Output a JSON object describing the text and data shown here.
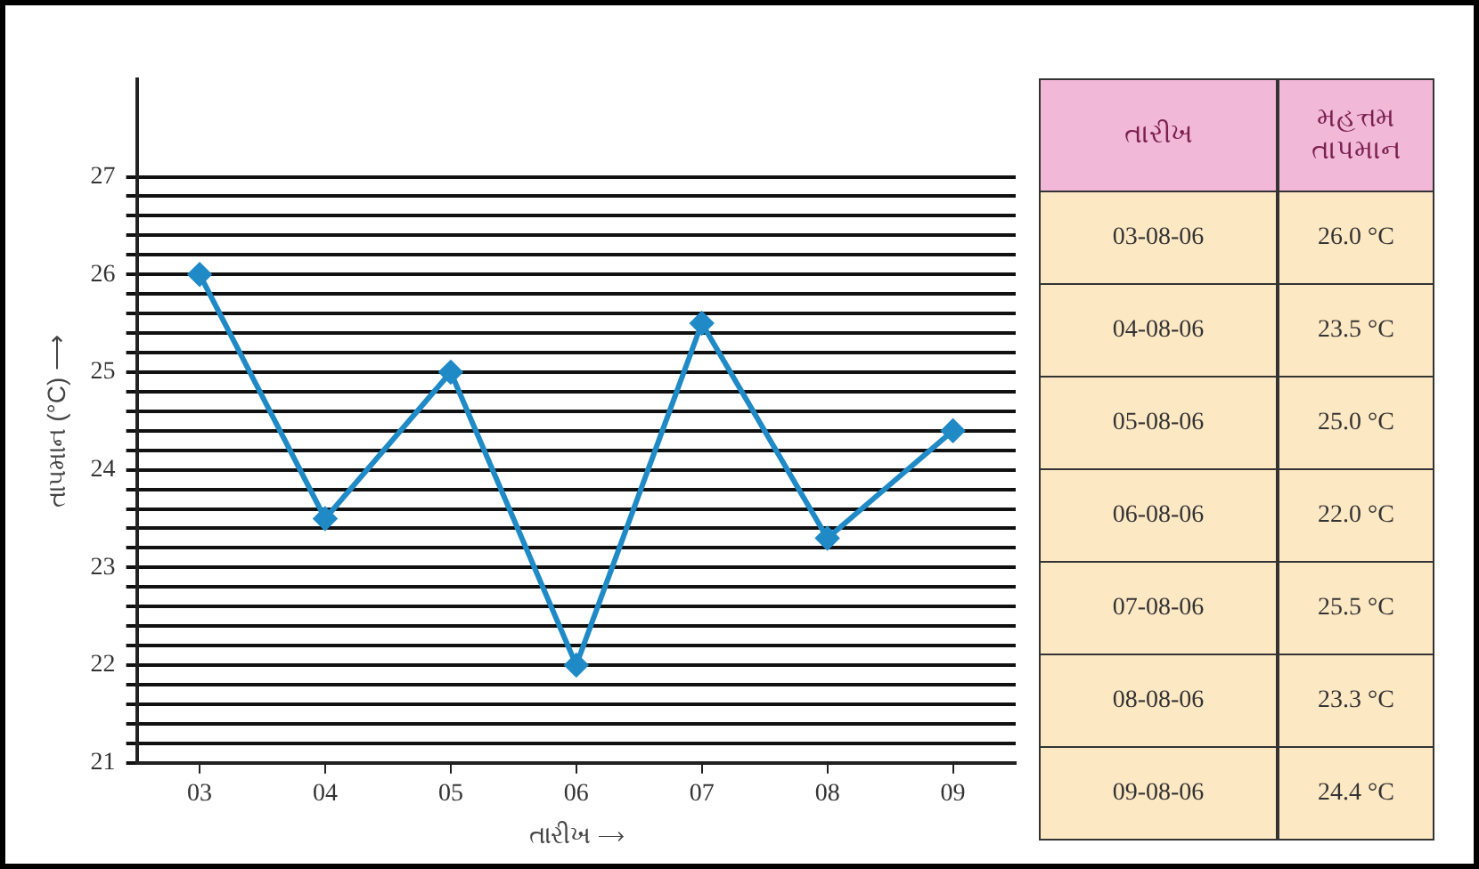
{
  "chart_data": {
    "type": "line",
    "categories": [
      "03",
      "04",
      "05",
      "06",
      "07",
      "08",
      "09"
    ],
    "values": [
      26.0,
      23.5,
      25.0,
      22.0,
      25.5,
      23.3,
      24.4
    ],
    "color": "#1f8ac6",
    "marker": "diamond",
    "line_style": "solid",
    "xlabel": "તારીખ ⟶",
    "ylabel": "તાપમાન (°C) ⟶",
    "ylim": [
      21,
      28
    ],
    "yticks": [
      21,
      {
        "value": 21.2,
        "label": null
      },
      {
        "value": 21.4,
        "label": null
      },
      {
        "value": 21.6,
        "label": null
      },
      {
        "value": 21.8,
        "label": null
      },
      22,
      {
        "value": 22.2,
        "label": null
      },
      {
        "value": 22.4,
        "label": null
      },
      {
        "value": 22.6,
        "label": null
      },
      {
        "value": 22.8,
        "label": null
      },
      23,
      {
        "value": 23.2,
        "label": null
      },
      {
        "value": 23.4,
        "label": null
      },
      {
        "value": 23.6,
        "label": null
      },
      {
        "value": 23.8,
        "label": null
      },
      24,
      {
        "value": 24.2,
        "label": null
      },
      {
        "value": 24.4,
        "label": null
      },
      {
        "value": 24.6,
        "label": null
      },
      {
        "value": 24.8,
        "label": null
      },
      25,
      {
        "value": 25.2,
        "label": null
      },
      {
        "value": 25.4,
        "label": null
      },
      {
        "value": 25.6,
        "label": null
      },
      {
        "value": 25.8,
        "label": null
      },
      26,
      {
        "value": 26.2,
        "label": null
      },
      {
        "value": 26.4,
        "label": null
      },
      {
        "value": 26.6,
        "label": null
      },
      {
        "value": 26.8,
        "label": null
      },
      27
    ],
    "grid": "y",
    "legend": false,
    "annotations": [
      "તારીખ",
      "મહત્તમ તાપમાન",
      "03-08-06",
      "26.0 °C",
      "04-08-06",
      "23.5 °C",
      "05-08-06",
      "25.0 °C",
      "06-08-06",
      "22.0 °C",
      "07-08-06",
      "25.5 °C",
      "08-08-06",
      "23.3 °C",
      "09-08-06",
      "24.4 °C"
    ]
  }
}
